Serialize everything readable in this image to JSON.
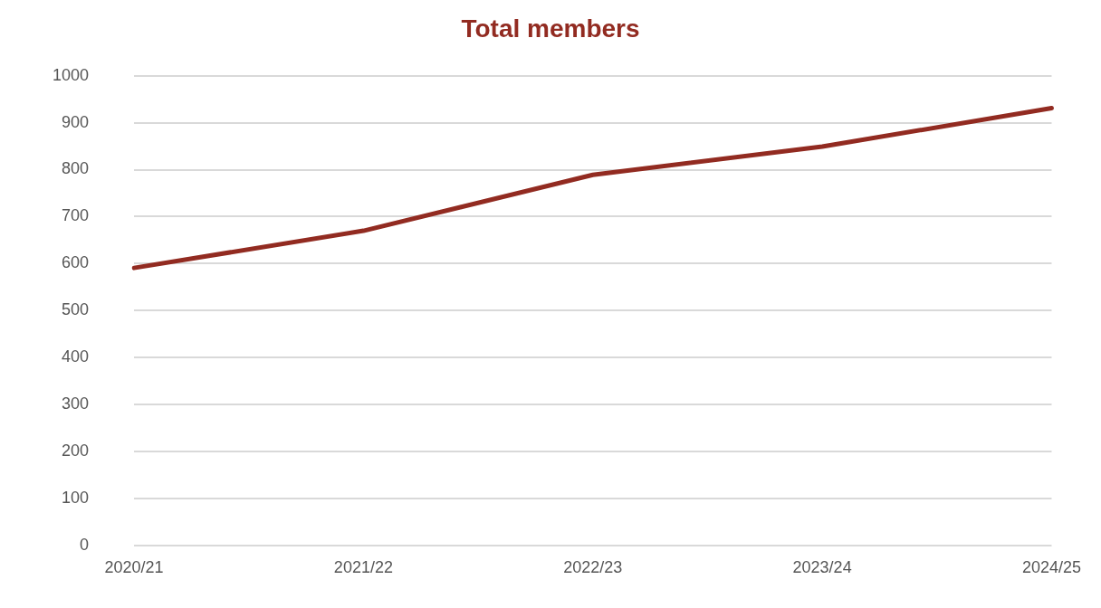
{
  "chart_data": {
    "type": "line",
    "title": "Total members",
    "categories": [
      "2020/21",
      "2021/22",
      "2022/23",
      "2023/24",
      "2024/25"
    ],
    "series": [
      {
        "color": "#922b21",
        "values": [
          591,
          670,
          789,
          849,
          931
        ]
      }
    ],
    "ylim": [
      0,
      1000
    ],
    "yticks": [
      0,
      100,
      200,
      300,
      400,
      500,
      600,
      700,
      800,
      900,
      1000
    ],
    "grid": "y",
    "legend": false,
    "marker": "none"
  }
}
